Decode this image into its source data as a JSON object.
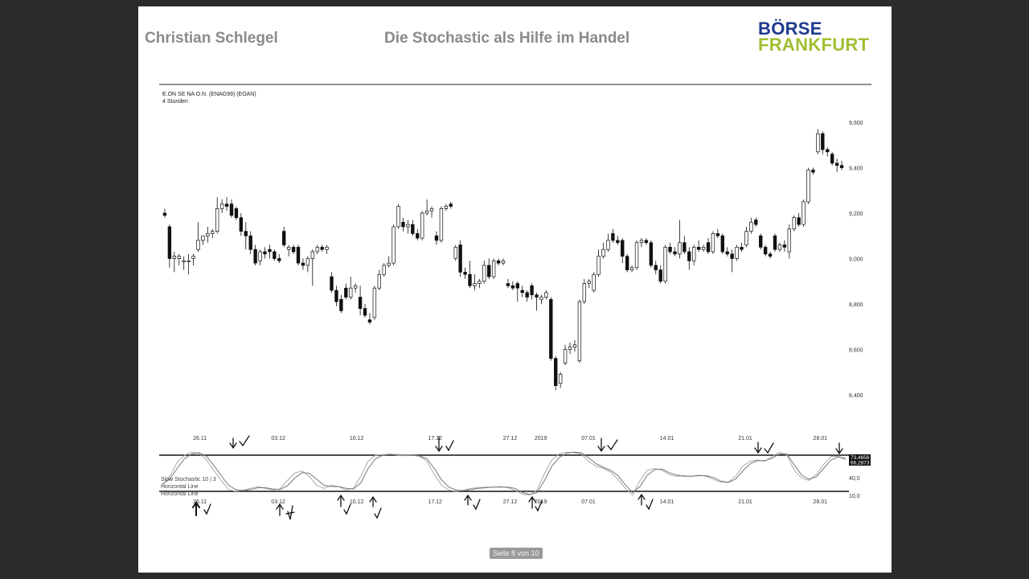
{
  "header": {
    "author": "Christian Schlegel",
    "title": "Die Stochastic als Hilfe im Handel",
    "logo_line1": "BÖRSE",
    "logo_line2": "FRANKFURT"
  },
  "footer": {
    "page_indicator": "Seite 8 von 10"
  },
  "chart_data": [
    {
      "type": "candlestick",
      "instrument": "E.ON SE NA O.N. (ENAG99) (EOAN)",
      "timeframe": "4 Stunden",
      "ylim": [
        8.35,
        9.65
      ],
      "yticks": [
        9.6,
        9.4,
        9.2,
        9.0,
        8.8,
        8.6,
        8.4
      ],
      "ytick_labels": [
        "9,600",
        "9,400",
        "9,200",
        "9,000",
        "8,800",
        "8,600",
        "8,400"
      ],
      "x_labels": [
        "26.11",
        "03.12",
        "10.12",
        "17.12",
        "27.12",
        "2019",
        "07.01",
        "14.01",
        "21.01",
        "28.01"
      ],
      "x_label_positions": [
        0.055,
        0.17,
        0.285,
        0.4,
        0.51,
        0.555,
        0.625,
        0.74,
        0.855,
        0.965
      ],
      "candles": [
        {
          "o": 9.2,
          "h": 9.22,
          "l": 9.18,
          "c": 9.19
        },
        {
          "o": 9.14,
          "h": 9.15,
          "l": 8.96,
          "c": 9.0
        },
        {
          "o": 9.0,
          "h": 9.03,
          "l": 8.94,
          "c": 9.01
        },
        {
          "o": 9.0,
          "h": 9.02,
          "l": 8.97,
          "c": 9.01
        },
        {
          "o": 8.99,
          "h": 9.01,
          "l": 8.95,
          "c": 8.99
        },
        {
          "o": 8.99,
          "h": 9.02,
          "l": 8.93,
          "c": 8.99
        },
        {
          "o": 9.0,
          "h": 9.02,
          "l": 8.97,
          "c": 9.01
        },
        {
          "o": 9.04,
          "h": 9.16,
          "l": 9.03,
          "c": 9.08
        },
        {
          "o": 9.08,
          "h": 9.1,
          "l": 9.06,
          "c": 9.1
        },
        {
          "o": 9.1,
          "h": 9.14,
          "l": 9.07,
          "c": 9.11
        },
        {
          "o": 9.11,
          "h": 9.13,
          "l": 9.09,
          "c": 9.12
        },
        {
          "o": 9.12,
          "h": 9.27,
          "l": 9.11,
          "c": 9.22
        },
        {
          "o": 9.22,
          "h": 9.26,
          "l": 9.2,
          "c": 9.24
        },
        {
          "o": 9.24,
          "h": 9.27,
          "l": 9.21,
          "c": 9.23
        },
        {
          "o": 9.24,
          "h": 9.26,
          "l": 9.18,
          "c": 9.19
        },
        {
          "o": 9.22,
          "h": 9.23,
          "l": 9.17,
          "c": 9.18
        },
        {
          "o": 9.18,
          "h": 9.2,
          "l": 9.1,
          "c": 9.12
        },
        {
          "o": 9.12,
          "h": 9.16,
          "l": 9.04,
          "c": 9.1
        },
        {
          "o": 9.1,
          "h": 9.12,
          "l": 9.02,
          "c": 9.04
        },
        {
          "o": 9.04,
          "h": 9.06,
          "l": 8.97,
          "c": 8.98
        },
        {
          "o": 8.99,
          "h": 9.04,
          "l": 8.97,
          "c": 9.03
        },
        {
          "o": 9.03,
          "h": 9.05,
          "l": 9.0,
          "c": 9.02
        },
        {
          "o": 9.04,
          "h": 9.06,
          "l": 9.0,
          "c": 9.03
        },
        {
          "o": 9.03,
          "h": 9.04,
          "l": 8.99,
          "c": 9.0
        },
        {
          "o": 9.0,
          "h": 9.02,
          "l": 8.98,
          "c": 8.99
        },
        {
          "o": 9.12,
          "h": 9.14,
          "l": 9.05,
          "c": 9.06
        },
        {
          "o": 9.04,
          "h": 9.06,
          "l": 9.01,
          "c": 9.05
        },
        {
          "o": 9.05,
          "h": 9.06,
          "l": 9.02,
          "c": 9.03
        },
        {
          "o": 9.05,
          "h": 9.06,
          "l": 8.97,
          "c": 8.98
        },
        {
          "o": 8.98,
          "h": 9.0,
          "l": 8.95,
          "c": 8.97
        },
        {
          "o": 8.97,
          "h": 9.01,
          "l": 8.94,
          "c": 9.0
        },
        {
          "o": 9.0,
          "h": 9.04,
          "l": 8.88,
          "c": 9.03
        },
        {
          "o": 9.03,
          "h": 9.06,
          "l": 9.02,
          "c": 9.05
        },
        {
          "o": 9.05,
          "h": 9.06,
          "l": 9.03,
          "c": 9.04
        },
        {
          "o": 9.04,
          "h": 9.06,
          "l": 9.02,
          "c": 9.05
        },
        {
          "o": 8.92,
          "h": 8.94,
          "l": 8.85,
          "c": 8.86
        },
        {
          "o": 8.86,
          "h": 8.88,
          "l": 8.79,
          "c": 8.81
        },
        {
          "o": 8.82,
          "h": 8.84,
          "l": 8.76,
          "c": 8.77
        },
        {
          "o": 8.87,
          "h": 8.89,
          "l": 8.82,
          "c": 8.83
        },
        {
          "o": 8.83,
          "h": 8.92,
          "l": 8.82,
          "c": 8.87
        },
        {
          "o": 8.87,
          "h": 8.89,
          "l": 8.85,
          "c": 8.88
        },
        {
          "o": 8.83,
          "h": 8.88,
          "l": 8.75,
          "c": 8.78
        },
        {
          "o": 8.78,
          "h": 8.8,
          "l": 8.74,
          "c": 8.75
        },
        {
          "o": 8.73,
          "h": 8.76,
          "l": 8.71,
          "c": 8.72
        },
        {
          "o": 8.74,
          "h": 8.88,
          "l": 8.73,
          "c": 8.87
        },
        {
          "o": 8.87,
          "h": 8.95,
          "l": 8.86,
          "c": 8.93
        },
        {
          "o": 8.93,
          "h": 8.98,
          "l": 8.92,
          "c": 8.97
        },
        {
          "o": 8.97,
          "h": 9.01,
          "l": 8.96,
          "c": 8.98
        },
        {
          "o": 8.98,
          "h": 9.15,
          "l": 8.97,
          "c": 9.14
        },
        {
          "o": 9.14,
          "h": 9.24,
          "l": 9.13,
          "c": 9.23
        },
        {
          "o": 9.16,
          "h": 9.18,
          "l": 9.12,
          "c": 9.14
        },
        {
          "o": 9.14,
          "h": 9.17,
          "l": 9.11,
          "c": 9.15
        },
        {
          "o": 9.15,
          "h": 9.17,
          "l": 9.1,
          "c": 9.11
        },
        {
          "o": 9.11,
          "h": 9.13,
          "l": 9.08,
          "c": 9.09
        },
        {
          "o": 9.09,
          "h": 9.21,
          "l": 9.08,
          "c": 9.2
        },
        {
          "o": 9.2,
          "h": 9.26,
          "l": 9.19,
          "c": 9.21
        },
        {
          "o": 9.21,
          "h": 9.23,
          "l": 9.18,
          "c": 9.22
        },
        {
          "o": 9.1,
          "h": 9.12,
          "l": 9.06,
          "c": 9.08
        },
        {
          "o": 9.08,
          "h": 9.23,
          "l": 9.07,
          "c": 9.22
        },
        {
          "o": 9.22,
          "h": 9.24,
          "l": 9.21,
          "c": 9.23
        },
        {
          "o": 9.24,
          "h": 9.25,
          "l": 9.22,
          "c": 9.23
        },
        {
          "o": 9.0,
          "h": 9.06,
          "l": 8.99,
          "c": 9.05
        },
        {
          "o": 9.06,
          "h": 9.08,
          "l": 8.92,
          "c": 8.94
        },
        {
          "o": 8.94,
          "h": 8.96,
          "l": 8.91,
          "c": 8.93
        },
        {
          "o": 8.93,
          "h": 8.99,
          "l": 8.87,
          "c": 8.88
        },
        {
          "o": 8.88,
          "h": 8.93,
          "l": 8.86,
          "c": 8.89
        },
        {
          "o": 8.89,
          "h": 8.91,
          "l": 8.87,
          "c": 8.9
        },
        {
          "o": 8.9,
          "h": 8.99,
          "l": 8.89,
          "c": 8.97
        },
        {
          "o": 8.97,
          "h": 9.0,
          "l": 8.91,
          "c": 8.92
        },
        {
          "o": 8.92,
          "h": 9.0,
          "l": 8.91,
          "c": 8.99
        },
        {
          "o": 8.99,
          "h": 9.0,
          "l": 8.97,
          "c": 8.98
        },
        {
          "o": 8.98,
          "h": 9.0,
          "l": 8.97,
          "c": 8.99
        },
        {
          "o": 8.89,
          "h": 8.91,
          "l": 8.87,
          "c": 8.88
        },
        {
          "o": 8.88,
          "h": 8.9,
          "l": 8.86,
          "c": 8.87
        },
        {
          "o": 8.89,
          "h": 8.9,
          "l": 8.81,
          "c": 8.87
        },
        {
          "o": 8.86,
          "h": 8.88,
          "l": 8.83,
          "c": 8.85
        },
        {
          "o": 8.85,
          "h": 8.86,
          "l": 8.81,
          "c": 8.83
        },
        {
          "o": 8.88,
          "h": 8.89,
          "l": 8.82,
          "c": 8.84
        },
        {
          "o": 8.84,
          "h": 8.85,
          "l": 8.77,
          "c": 8.83
        },
        {
          "o": 8.82,
          "h": 8.84,
          "l": 8.8,
          "c": 8.83
        },
        {
          "o": 8.83,
          "h": 8.86,
          "l": 8.82,
          "c": 8.85
        },
        {
          "o": 8.82,
          "h": 8.83,
          "l": 8.55,
          "c": 8.56
        },
        {
          "o": 8.56,
          "h": 8.57,
          "l": 8.42,
          "c": 8.44
        },
        {
          "o": 8.45,
          "h": 8.5,
          "l": 8.43,
          "c": 8.49
        },
        {
          "o": 8.54,
          "h": 8.62,
          "l": 8.53,
          "c": 8.6
        },
        {
          "o": 8.6,
          "h": 8.63,
          "l": 8.58,
          "c": 8.61
        },
        {
          "o": 8.61,
          "h": 8.64,
          "l": 8.59,
          "c": 8.62
        },
        {
          "o": 8.55,
          "h": 8.82,
          "l": 8.54,
          "c": 8.81
        },
        {
          "o": 8.81,
          "h": 8.91,
          "l": 8.8,
          "c": 8.89
        },
        {
          "o": 8.89,
          "h": 8.91,
          "l": 8.87,
          "c": 8.9
        },
        {
          "o": 8.86,
          "h": 8.94,
          "l": 8.85,
          "c": 8.93
        },
        {
          "o": 8.93,
          "h": 9.04,
          "l": 8.92,
          "c": 9.01
        },
        {
          "o": 9.01,
          "h": 9.07,
          "l": 9.0,
          "c": 9.04
        },
        {
          "o": 9.04,
          "h": 9.11,
          "l": 9.03,
          "c": 9.08
        },
        {
          "o": 9.11,
          "h": 9.13,
          "l": 9.07,
          "c": 9.08
        },
        {
          "o": 9.08,
          "h": 9.1,
          "l": 9.06,
          "c": 9.07
        },
        {
          "o": 9.08,
          "h": 9.09,
          "l": 8.98,
          "c": 9.01
        },
        {
          "o": 9.01,
          "h": 9.02,
          "l": 8.94,
          "c": 8.95
        },
        {
          "o": 8.95,
          "h": 8.97,
          "l": 8.94,
          "c": 8.96
        },
        {
          "o": 8.96,
          "h": 9.08,
          "l": 8.95,
          "c": 9.07
        },
        {
          "o": 9.07,
          "h": 9.09,
          "l": 9.05,
          "c": 9.08
        },
        {
          "o": 9.08,
          "h": 9.09,
          "l": 9.06,
          "c": 9.07
        },
        {
          "o": 9.07,
          "h": 9.08,
          "l": 8.96,
          "c": 8.97
        },
        {
          "o": 8.97,
          "h": 8.99,
          "l": 8.93,
          "c": 8.95
        },
        {
          "o": 8.95,
          "h": 8.97,
          "l": 8.89,
          "c": 8.9
        },
        {
          "o": 8.9,
          "h": 9.06,
          "l": 8.89,
          "c": 9.05
        },
        {
          "o": 9.05,
          "h": 9.07,
          "l": 9.02,
          "c": 9.03
        },
        {
          "o": 9.03,
          "h": 9.05,
          "l": 9.01,
          "c": 9.02
        },
        {
          "o": 9.02,
          "h": 9.17,
          "l": 9.0,
          "c": 9.07
        },
        {
          "o": 9.07,
          "h": 9.1,
          "l": 9.02,
          "c": 9.03
        },
        {
          "o": 9.03,
          "h": 9.05,
          "l": 8.95,
          "c": 8.99
        },
        {
          "o": 8.99,
          "h": 9.06,
          "l": 8.97,
          "c": 9.05
        },
        {
          "o": 9.05,
          "h": 9.08,
          "l": 9.03,
          "c": 9.04
        },
        {
          "o": 9.04,
          "h": 9.06,
          "l": 9.03,
          "c": 9.05
        },
        {
          "o": 9.07,
          "h": 9.09,
          "l": 9.02,
          "c": 9.03
        },
        {
          "o": 9.03,
          "h": 9.12,
          "l": 9.02,
          "c": 9.11
        },
        {
          "o": 9.11,
          "h": 9.13,
          "l": 9.09,
          "c": 9.1
        },
        {
          "o": 9.1,
          "h": 9.11,
          "l": 9.02,
          "c": 9.03
        },
        {
          "o": 9.03,
          "h": 9.05,
          "l": 9.01,
          "c": 9.02
        },
        {
          "o": 9.02,
          "h": 9.04,
          "l": 8.94,
          "c": 9.0
        },
        {
          "o": 9.0,
          "h": 9.06,
          "l": 8.99,
          "c": 9.05
        },
        {
          "o": 9.05,
          "h": 9.07,
          "l": 9.03,
          "c": 9.04
        },
        {
          "o": 9.06,
          "h": 9.14,
          "l": 9.05,
          "c": 9.12
        },
        {
          "o": 9.12,
          "h": 9.18,
          "l": 9.11,
          "c": 9.16
        },
        {
          "o": 9.17,
          "h": 9.18,
          "l": 9.14,
          "c": 9.15
        },
        {
          "o": 9.1,
          "h": 9.11,
          "l": 9.04,
          "c": 9.05
        },
        {
          "o": 9.05,
          "h": 9.06,
          "l": 9.01,
          "c": 9.02
        },
        {
          "o": 9.02,
          "h": 9.03,
          "l": 9.0,
          "c": 9.01
        },
        {
          "o": 9.1,
          "h": 9.11,
          "l": 9.03,
          "c": 9.04
        },
        {
          "o": 9.04,
          "h": 9.07,
          "l": 9.03,
          "c": 9.06
        },
        {
          "o": 9.06,
          "h": 9.08,
          "l": 9.03,
          "c": 9.05
        },
        {
          "o": 9.03,
          "h": 9.15,
          "l": 9.0,
          "c": 9.13
        },
        {
          "o": 9.13,
          "h": 9.19,
          "l": 9.12,
          "c": 9.18
        },
        {
          "o": 9.18,
          "h": 9.2,
          "l": 9.14,
          "c": 9.15
        },
        {
          "o": 9.15,
          "h": 9.26,
          "l": 9.14,
          "c": 9.25
        },
        {
          "o": 9.25,
          "h": 9.4,
          "l": 9.24,
          "c": 9.39
        },
        {
          "o": 9.39,
          "h": 9.4,
          "l": 9.37,
          "c": 9.38
        },
        {
          "o": 9.47,
          "h": 9.57,
          "l": 9.46,
          "c": 9.55
        },
        {
          "o": 9.55,
          "h": 9.56,
          "l": 9.46,
          "c": 9.48
        },
        {
          "o": 9.48,
          "h": 9.49,
          "l": 9.45,
          "c": 9.47
        },
        {
          "o": 9.46,
          "h": 9.47,
          "l": 9.41,
          "c": 9.42
        },
        {
          "o": 9.42,
          "h": 9.44,
          "l": 9.38,
          "c": 9.41
        },
        {
          "o": 9.41,
          "h": 9.43,
          "l": 9.39,
          "c": 9.4
        }
      ]
    },
    {
      "type": "line",
      "name": "Slow Stochastic 10 | 3",
      "legend": [
        "Slow Stochastic 10 | 3",
        "Horizontal Line",
        "Horizontal Line"
      ],
      "ylim": [
        0,
        100
      ],
      "horizontal_lines": [
        80,
        20
      ],
      "ytick_labels": [
        "40,0",
        "10,0"
      ],
      "last_value_labels": [
        "73,4656",
        "66,2873"
      ],
      "x_labels": [
        "26.11",
        "03.12",
        "10.12",
        "17.12",
        "27.12",
        "2019",
        "07.01",
        "14.01",
        "21.01",
        "28.01"
      ],
      "series": [
        {
          "values": [
            30,
            45,
            68,
            80,
            85,
            83,
            72,
            55,
            38,
            23,
            20,
            22,
            25,
            28,
            25,
            22,
            24,
            38,
            50,
            54,
            45,
            30,
            25,
            30,
            28,
            22,
            25,
            45,
            70,
            80,
            81,
            82,
            80,
            79,
            80,
            78,
            70,
            48,
            30,
            22,
            20,
            22,
            25,
            26,
            27,
            27,
            28,
            26,
            22,
            15,
            14,
            22,
            50,
            72,
            82,
            85,
            84,
            82,
            70,
            62,
            58,
            52,
            40,
            25,
            14,
            38,
            55,
            58,
            55,
            48,
            45,
            46,
            45,
            47,
            45,
            40,
            35,
            35,
            45,
            62,
            70,
            72,
            70,
            78,
            85,
            80,
            55,
            42,
            38,
            48,
            65,
            78,
            78,
            72
          ],
          "color": "#aaaaaa"
        },
        {
          "values": [
            32,
            40,
            58,
            74,
            82,
            84,
            78,
            63,
            46,
            30,
            23,
            21,
            23,
            26,
            26,
            24,
            23,
            29,
            42,
            51,
            50,
            40,
            30,
            28,
            28,
            25,
            24,
            34,
            58,
            74,
            80,
            81,
            81,
            80,
            80,
            79,
            74,
            58,
            39,
            27,
            22,
            21,
            23,
            25,
            26,
            27,
            27,
            27,
            25,
            18,
            15,
            18,
            38,
            62,
            76,
            83,
            85,
            84,
            76,
            66,
            60,
            55,
            46,
            31,
            18,
            28,
            47,
            56,
            57,
            51,
            47,
            45,
            45,
            46,
            46,
            43,
            37,
            35,
            40,
            54,
            66,
            71,
            71,
            75,
            82,
            82,
            64,
            47,
            40,
            44,
            58,
            72,
            77,
            75
          ],
          "color": "#777777"
        }
      ]
    }
  ]
}
